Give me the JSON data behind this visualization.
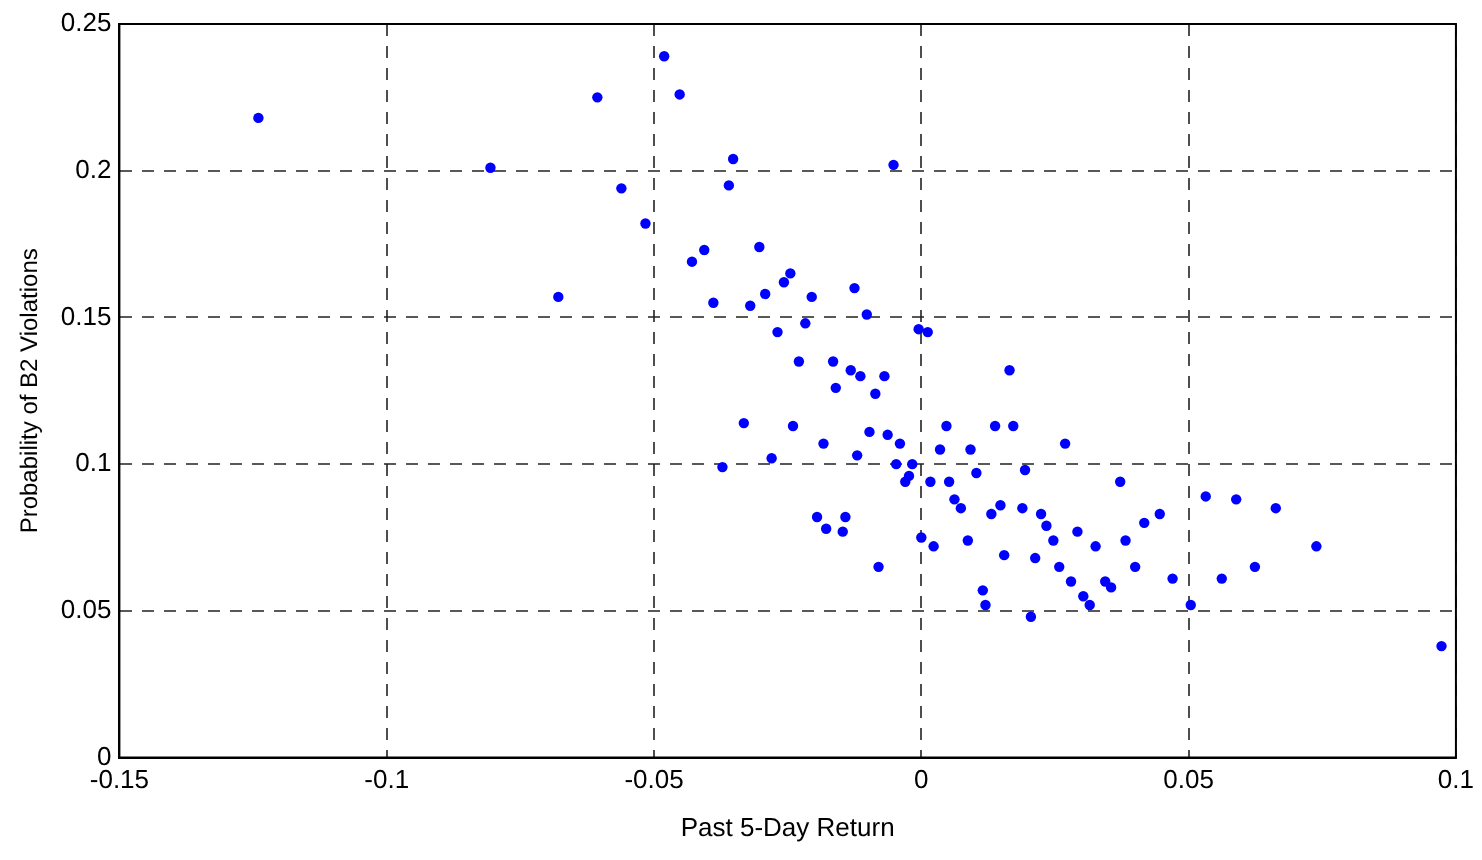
{
  "chart_data": {
    "type": "scatter",
    "xlabel": "Past 5-Day Return",
    "ylabel": "Probability of B2 Violations",
    "xlim": [
      -0.15,
      0.1
    ],
    "xticks": [
      -0.15,
      -0.1,
      -0.05,
      0,
      0.05,
      0.1
    ],
    "ylim": [
      0,
      0.25
    ],
    "yticks": [
      0,
      0.05,
      0.1,
      0.15,
      0.2,
      0.25
    ],
    "grid": true,
    "marker": "circle",
    "series": [
      {
        "color": "#0000ff",
        "x": [
          -0.124,
          -0.0806,
          -0.0679,
          -0.0606,
          -0.0561,
          -0.0516,
          -0.0481,
          -0.0452,
          -0.0429,
          -0.0406,
          -0.0389,
          -0.036,
          -0.0352,
          -0.0303,
          -0.032,
          -0.0292,
          -0.0257,
          -0.0245,
          -0.0205,
          -0.0269,
          -0.0217,
          -0.0125,
          -0.0102,
          -0.0052,
          -0.0005,
          0.0012,
          0.0165,
          -0.0229,
          -0.0165,
          -0.0132,
          -0.0114,
          -0.0069,
          -0.016,
          -0.0086,
          -0.0332,
          -0.024,
          -0.0097,
          -0.0063,
          0.0047,
          0.0138,
          0.0172,
          -0.0183,
          -0.004,
          0.0269,
          -0.028,
          -0.012,
          0.0035,
          0.0092,
          -0.0372,
          -0.0047,
          -0.0017,
          0.0103,
          0.0194,
          -0.0023,
          -0.003,
          0.0017,
          0.0052,
          0.0372,
          0.0062,
          0.0074,
          0.0131,
          0.0148,
          0.0189,
          0.0224,
          0.0234,
          0.0292,
          0.0417,
          -0.0195,
          -0.0142,
          -0.0178,
          -0.0147,
          0.0,
          0.0023,
          0.0087,
          0.0247,
          0.0326,
          0.0382,
          0.0155,
          0.0213,
          0.0258,
          0.04,
          -0.008,
          0.028,
          0.0344,
          0.0355,
          0.0303,
          0.0315,
          0.0115,
          0.012,
          0.0205,
          0.0446,
          0.047,
          0.0504,
          0.0532,
          0.0589,
          0.0562,
          0.0624,
          0.0663,
          0.0739,
          0.0973
        ],
        "values": [
          0.218,
          0.201,
          0.157,
          0.225,
          0.194,
          0.182,
          0.239,
          0.226,
          0.169,
          0.173,
          0.155,
          0.195,
          0.204,
          0.174,
          0.154,
          0.158,
          0.162,
          0.165,
          0.157,
          0.145,
          0.148,
          0.16,
          0.151,
          0.202,
          0.146,
          0.145,
          0.132,
          0.135,
          0.135,
          0.132,
          0.13,
          0.13,
          0.126,
          0.124,
          0.114,
          0.113,
          0.111,
          0.11,
          0.113,
          0.113,
          0.113,
          0.107,
          0.107,
          0.107,
          0.102,
          0.103,
          0.105,
          0.105,
          0.099,
          0.1,
          0.1,
          0.097,
          0.098,
          0.096,
          0.094,
          0.094,
          0.094,
          0.094,
          0.088,
          0.085,
          0.083,
          0.086,
          0.085,
          0.083,
          0.079,
          0.077,
          0.08,
          0.082,
          0.082,
          0.078,
          0.077,
          0.075,
          0.072,
          0.074,
          0.074,
          0.072,
          0.074,
          0.069,
          0.068,
          0.065,
          0.065,
          0.065,
          0.06,
          0.06,
          0.058,
          0.055,
          0.052,
          0.057,
          0.052,
          0.048,
          0.083,
          0.061,
          0.052,
          0.089,
          0.088,
          0.061,
          0.065,
          0.085,
          0.072,
          0.038
        ]
      }
    ]
  }
}
